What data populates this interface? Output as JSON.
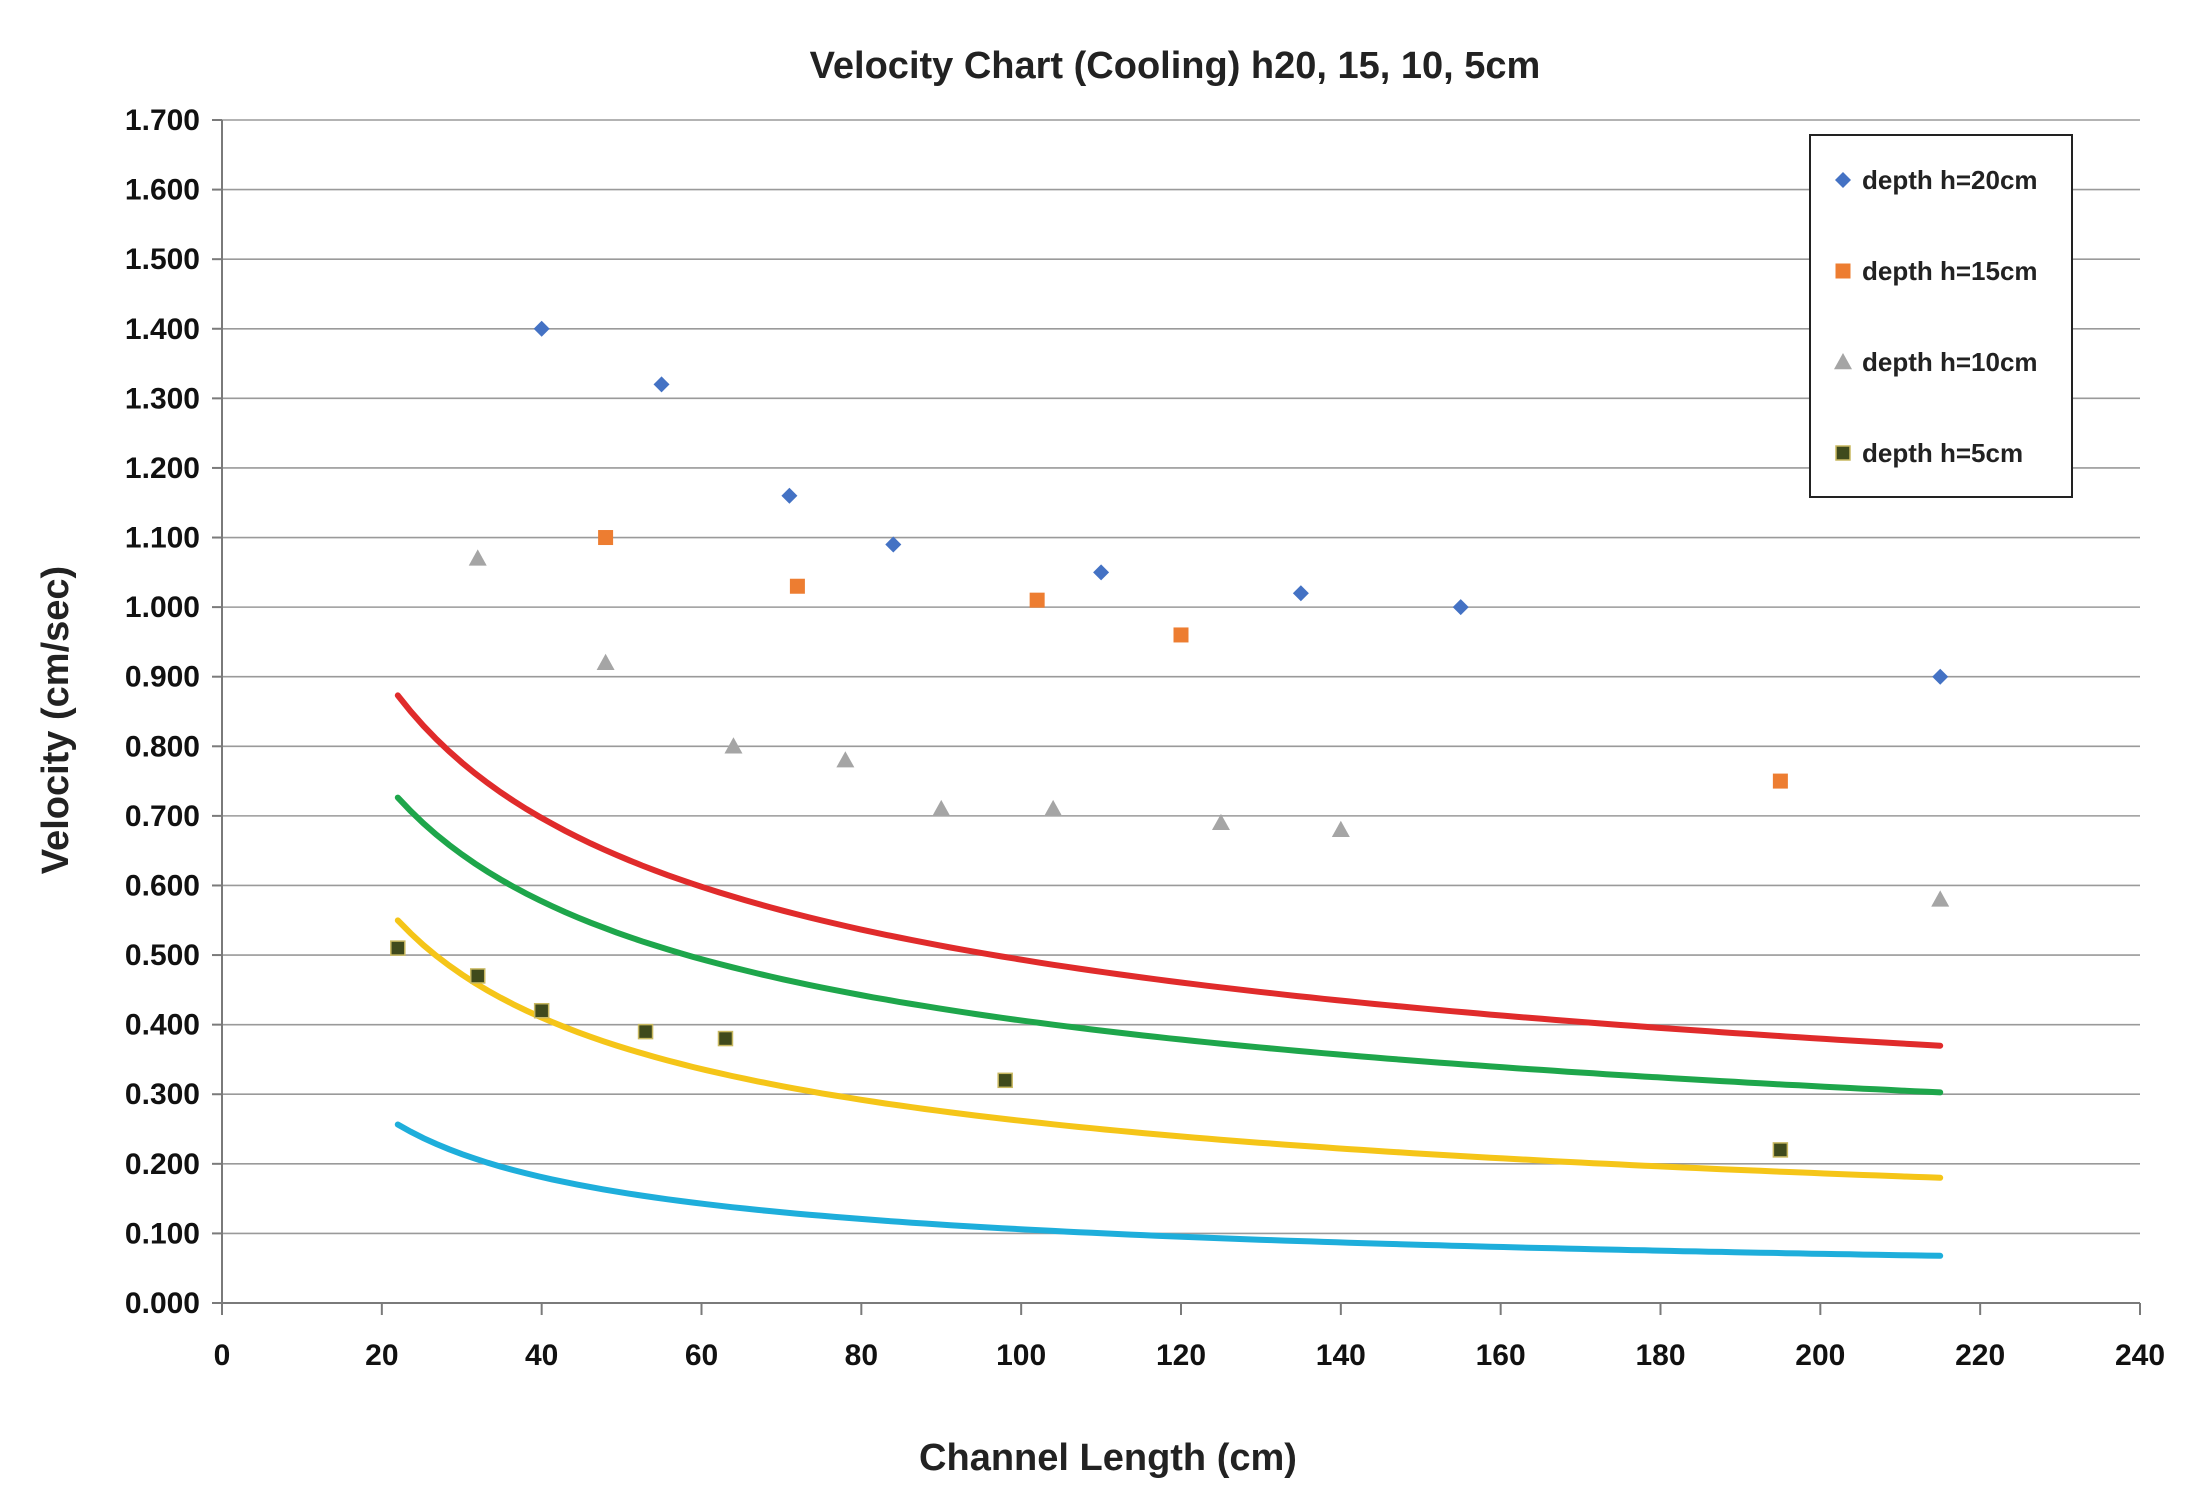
{
  "chart_data": {
    "type": "scatter",
    "title": "Velocity Chart (Cooling) h20, 15, 10, 5cm",
    "xlabel": "Channel Length (cm)",
    "ylabel": "Velocity  (cm/sec)",
    "xlim": [
      0,
      240
    ],
    "ylim": [
      0,
      1.7
    ],
    "x_ticks": [
      "0",
      "20",
      "40",
      "60",
      "80",
      "100",
      "120",
      "140",
      "160",
      "180",
      "200",
      "220",
      "240"
    ],
    "y_ticks": [
      "0.000",
      "0.100",
      "0.200",
      "0.300",
      "0.400",
      "0.500",
      "0.600",
      "0.700",
      "0.800",
      "0.900",
      "1.000",
      "1.100",
      "1.200",
      "1.300",
      "1.400",
      "1.500",
      "1.600",
      "1.700"
    ],
    "legend_position": "top-right",
    "series": [
      {
        "name": "depth h=20cm",
        "marker": "diamond",
        "color": "#4472C4",
        "trend_color": "#E02B2B",
        "trend_range": [
          22,
          215
        ],
        "trend": {
          "a": 2.8,
          "b": -0.377
        },
        "points": [
          [
            40,
            1.4
          ],
          [
            55,
            1.32
          ],
          [
            71,
            1.16
          ],
          [
            84,
            1.09
          ],
          [
            110,
            1.05
          ],
          [
            135,
            1.02
          ],
          [
            155,
            1.0
          ],
          [
            215,
            0.9
          ]
        ]
      },
      {
        "name": "depth h=15cm",
        "marker": "square",
        "color": "#ED7D31",
        "trend_color": "#1EA64B",
        "trend_range": [
          22,
          215
        ],
        "trend": {
          "a": 2.38,
          "b": -0.384
        },
        "points": [
          [
            48,
            1.1
          ],
          [
            72,
            1.03
          ],
          [
            102,
            1.01
          ],
          [
            120,
            0.96
          ],
          [
            195,
            0.75
          ]
        ]
      },
      {
        "name": "depth h=10cm",
        "marker": "triangle",
        "color": "#A5A5A5",
        "trend_color": "#F5C518",
        "trend_range": [
          22,
          215
        ],
        "trend": {
          "a": 2.5,
          "b": -0.49
        },
        "points": [
          [
            32,
            1.07
          ],
          [
            48,
            0.92
          ],
          [
            64,
            0.8
          ],
          [
            78,
            0.78
          ],
          [
            90,
            0.71
          ],
          [
            104,
            0.71
          ],
          [
            125,
            0.69
          ],
          [
            140,
            0.68
          ],
          [
            215,
            0.58
          ]
        ]
      },
      {
        "name": "depth h=5cm",
        "marker": "square-dark",
        "color": "#3F4A1C",
        "trend_color": "#1EAEDB",
        "trend_range": [
          22,
          215
        ],
        "trend": {
          "a": 1.56,
          "b": -0.584
        },
        "points": [
          [
            22,
            0.51
          ],
          [
            32,
            0.47
          ],
          [
            40,
            0.42
          ],
          [
            53,
            0.39
          ],
          [
            63,
            0.38
          ],
          [
            98,
            0.32
          ],
          [
            195,
            0.22
          ]
        ]
      }
    ]
  }
}
